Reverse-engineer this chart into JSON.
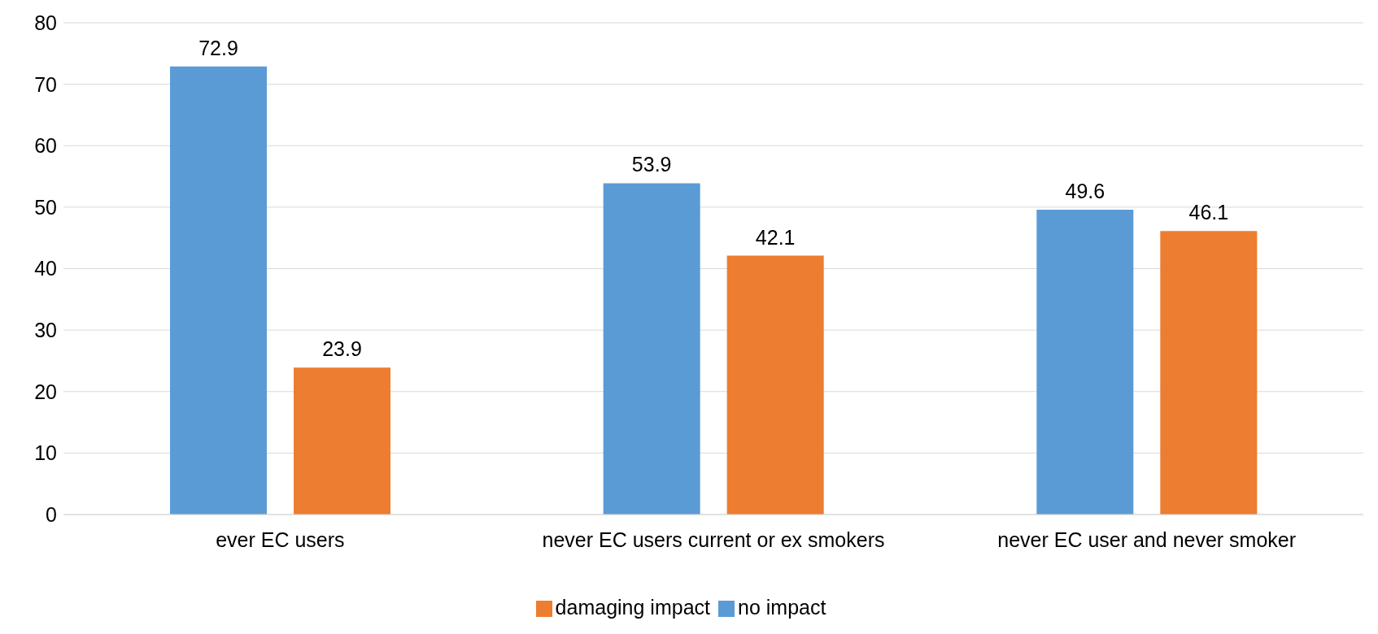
{
  "chart_data": {
    "type": "bar",
    "categories": [
      "ever EC users",
      "never EC users current or ex smokers",
      "never EC user and never smoker"
    ],
    "series": [
      {
        "name": "no impact",
        "color": "#5b9bd5",
        "values": [
          72.9,
          53.9,
          49.6
        ]
      },
      {
        "name": "damaging impact",
        "color": "#ed7d31",
        "values": [
          23.9,
          42.1,
          46.1
        ]
      }
    ],
    "ylim": [
      0,
      80
    ],
    "yticks": [
      0,
      10,
      20,
      30,
      40,
      50,
      60,
      70,
      80
    ],
    "grid": "y",
    "legend": "bottom",
    "data_labels": true
  }
}
